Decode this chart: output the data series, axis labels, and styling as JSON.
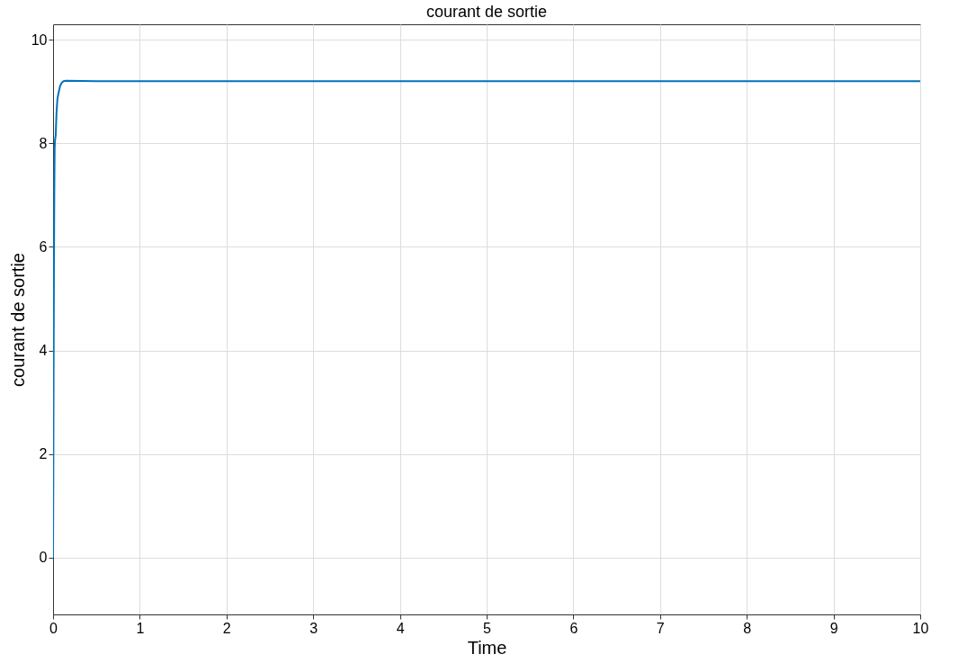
{
  "chart_data": {
    "type": "line",
    "title": "courant de sortie",
    "xlabel": "Time",
    "ylabel": "courant de sortie",
    "x": [
      0,
      0.003,
      0.006,
      0.01,
      0.014,
      0.018,
      0.022,
      0.03,
      0.04,
      0.05,
      0.06,
      0.08,
      0.1,
      0.12,
      0.15,
      0.5,
      1,
      1.5,
      2,
      2.5,
      3,
      3.5,
      4,
      4.5,
      5,
      5.5,
      6,
      6.5,
      7,
      7.5,
      8,
      8.5,
      9,
      9.5,
      10
    ],
    "series": [
      {
        "color": "#0072bd",
        "values": [
          0,
          1.5,
          3.5,
          5.5,
          7.0,
          7.9,
          8.05,
          8.15,
          8.6,
          8.85,
          8.95,
          9.1,
          9.17,
          9.2,
          9.21,
          9.2,
          9.2,
          9.2,
          9.2,
          9.2,
          9.2,
          9.2,
          9.2,
          9.2,
          9.2,
          9.2,
          9.2,
          9.2,
          9.2,
          9.2,
          9.2,
          9.2,
          9.2,
          9.2,
          9.2
        ]
      }
    ],
    "xlim": [
      0,
      10
    ],
    "ylim": [
      -1.1,
      10.3
    ],
    "xticks": [
      0,
      1,
      2,
      3,
      4,
      5,
      6,
      7,
      8,
      9,
      10
    ],
    "yticks": [
      0,
      2,
      4,
      6,
      8,
      10
    ],
    "grid": true,
    "marker": "none",
    "line_style": "solid"
  }
}
